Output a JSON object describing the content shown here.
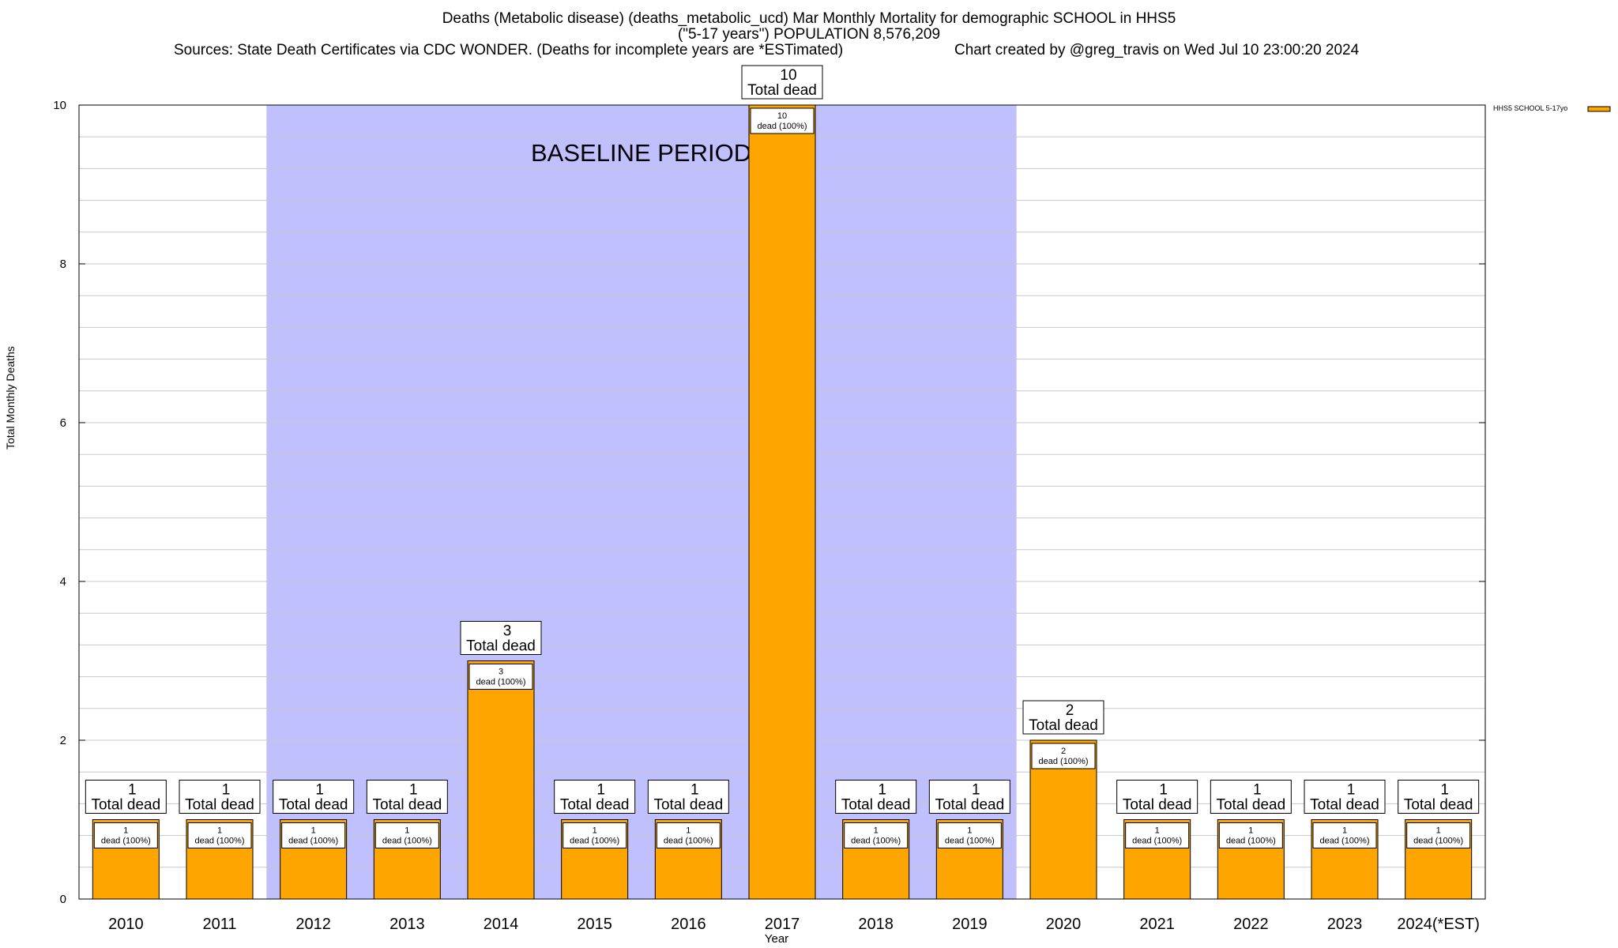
{
  "chart_data": {
    "type": "bar",
    "title": "Deaths (Metabolic disease) (deaths_metabolic_ucd) Mar Monthly Mortality for demographic SCHOOL in HHS5",
    "subtitle": "(\"5-17 years\") POPULATION 8,576,209",
    "sources": "Sources: State Death Certificates via CDC WONDER. (Deaths for incomplete years are *ESTimated)",
    "credit": "Chart created by @greg_travis on Wed Jul 10 23:00:20 2024",
    "xlabel": "Year",
    "ylabel": "Total Monthly Deaths",
    "ylim": [
      0,
      10
    ],
    "yticks": [
      0,
      2,
      4,
      6,
      8,
      10
    ],
    "grid": true,
    "legend_position": "top-right",
    "categories": [
      "2010",
      "2011",
      "2012",
      "2013",
      "2014",
      "2015",
      "2016",
      "2017",
      "2018",
      "2019",
      "2020",
      "2021",
      "2022",
      "2023",
      "2024(*EST)"
    ],
    "series": [
      {
        "name": "HHS5 SCHOOL 5-17yo",
        "color": "#ffa500",
        "values": [
          1,
          1,
          1,
          1,
          3,
          1,
          1,
          10,
          1,
          1,
          2,
          1,
          1,
          1,
          1
        ]
      }
    ],
    "total_label_suffix": "Total dead",
    "inner_label_suffix": "dead (100%)",
    "annotation": {
      "text": "BASELINE PERIOD",
      "from": "2012",
      "to": "2019",
      "color": "#c0c0ff"
    }
  }
}
